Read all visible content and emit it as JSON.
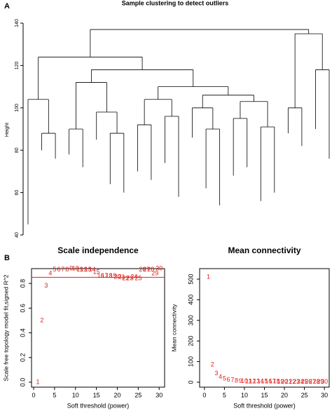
{
  "panels": [
    "A",
    "B"
  ],
  "chart_data": [
    {
      "type": "dendrogram",
      "title": "Sample clustering to detect outliers",
      "ylabel": "Height",
      "ylim": [
        40,
        140
      ],
      "yticks": [
        40,
        60,
        80,
        100,
        120,
        140
      ],
      "tree": {
        "height": 137,
        "children": [
          {
            "height": 124,
            "children": [
              {
                "height": 104,
                "children": [
                  {
                    "height": 45
                  },
                  {
                    "height": 88,
                    "children": [
                      {
                        "height": 80
                      },
                      {
                        "height": 76
                      }
                    ]
                  }
                ]
              },
              {
                "height": 118,
                "children": [
                  {
                    "height": 112,
                    "children": [
                      {
                        "height": 90,
                        "children": [
                          {
                            "height": 78
                          },
                          {
                            "height": 72
                          }
                        ]
                      },
                      {
                        "height": 98,
                        "children": [
                          {
                            "height": 85
                          },
                          {
                            "height": 88,
                            "children": [
                              {
                                "height": 64
                              },
                              {
                                "height": 60
                              }
                            ]
                          }
                        ]
                      }
                    ]
                  },
                  {
                    "height": 110,
                    "children": [
                      {
                        "height": 104,
                        "children": [
                          {
                            "height": 92,
                            "children": [
                              {
                                "height": 70
                              },
                              {
                                "height": 66
                              }
                            ]
                          },
                          {
                            "height": 96,
                            "children": [
                              {
                                "height": 74
                              },
                              {
                                "height": 58
                              }
                            ]
                          }
                        ]
                      },
                      {
                        "height": 106,
                        "children": [
                          {
                            "height": 100,
                            "children": [
                              {
                                "height": 86
                              },
                              {
                                "height": 90,
                                "children": [
                                  {
                                    "height": 62
                                  },
                                  {
                                    "height": 54
                                  }
                                ]
                              }
                            ]
                          },
                          {
                            "height": 103,
                            "children": [
                              {
                                "height": 95,
                                "children": [
                                  {
                                    "height": 68
                                  },
                                  {
                                    "height": 72
                                  }
                                ]
                              },
                              {
                                "height": 91,
                                "children": [
                                  {
                                    "height": 56
                                  },
                                  {
                                    "height": 60
                                  }
                                ]
                              }
                            ]
                          }
                        ]
                      }
                    ]
                  }
                ]
              }
            ]
          },
          {
            "height": 135,
            "children": [
              {
                "height": 100,
                "children": [
                  {
                    "height": 88
                  },
                  {
                    "height": 82
                  }
                ]
              },
              {
                "height": 118,
                "children": [
                  {
                    "height": 90
                  },
                  {
                    "height": 76
                  }
                ]
              }
            ]
          }
        ]
      }
    },
    {
      "type": "scatter",
      "title": "Scale independence",
      "xlabel": "Soft threshold (power)",
      "ylabel": "Scale free topology model fit,signed R^2",
      "x": [
        1,
        2,
        3,
        4,
        5,
        6,
        7,
        8,
        9,
        10,
        11,
        12,
        13,
        14,
        15,
        16,
        17,
        18,
        19,
        20,
        21,
        22,
        23,
        24,
        25,
        26,
        27,
        28,
        29,
        30
      ],
      "values": [
        0.0,
        0.5,
        0.78,
        0.88,
        0.91,
        0.91,
        0.91,
        0.91,
        0.92,
        0.92,
        0.91,
        0.91,
        0.91,
        0.91,
        0.89,
        0.86,
        0.86,
        0.86,
        0.86,
        0.85,
        0.85,
        0.84,
        0.84,
        0.85,
        0.84,
        0.91,
        0.91,
        0.91,
        0.88,
        0.92
      ],
      "color": "#e0201b",
      "hline": 0.85,
      "xlim": [
        -0.5,
        31.3
      ],
      "xticks": [
        0,
        5,
        10,
        15,
        20,
        25,
        30
      ],
      "ylim": [
        -0.04,
        0.92
      ],
      "yticks": [
        {
          "value": 0,
          "label": "0.0"
        },
        0.2,
        0.4,
        0.6,
        0.8
      ]
    },
    {
      "type": "scatter",
      "title": "Mean connectivity",
      "xlabel": "Soft threshold (power)",
      "ylabel": "Mean connectivity",
      "x": [
        1,
        2,
        3,
        4,
        5,
        6,
        7,
        8,
        9,
        10,
        11,
        12,
        13,
        14,
        15,
        16,
        17,
        18,
        19,
        20,
        21,
        22,
        23,
        24,
        25,
        26,
        27,
        28,
        29,
        30
      ],
      "values": [
        510,
        85,
        42,
        25,
        16,
        12,
        9,
        7,
        5,
        4,
        3,
        3,
        2,
        2,
        2,
        2,
        2,
        2,
        1,
        1,
        1,
        1,
        1,
        1,
        1,
        1,
        1,
        1,
        1,
        1
      ],
      "color": "#e0201b",
      "xlim": [
        -1.2,
        31.2
      ],
      "xticks": [
        0,
        5,
        10,
        15,
        20,
        25,
        30
      ],
      "ylim": [
        -24,
        551
      ],
      "yticks": [
        0,
        100,
        200,
        300,
        400,
        500
      ]
    }
  ]
}
